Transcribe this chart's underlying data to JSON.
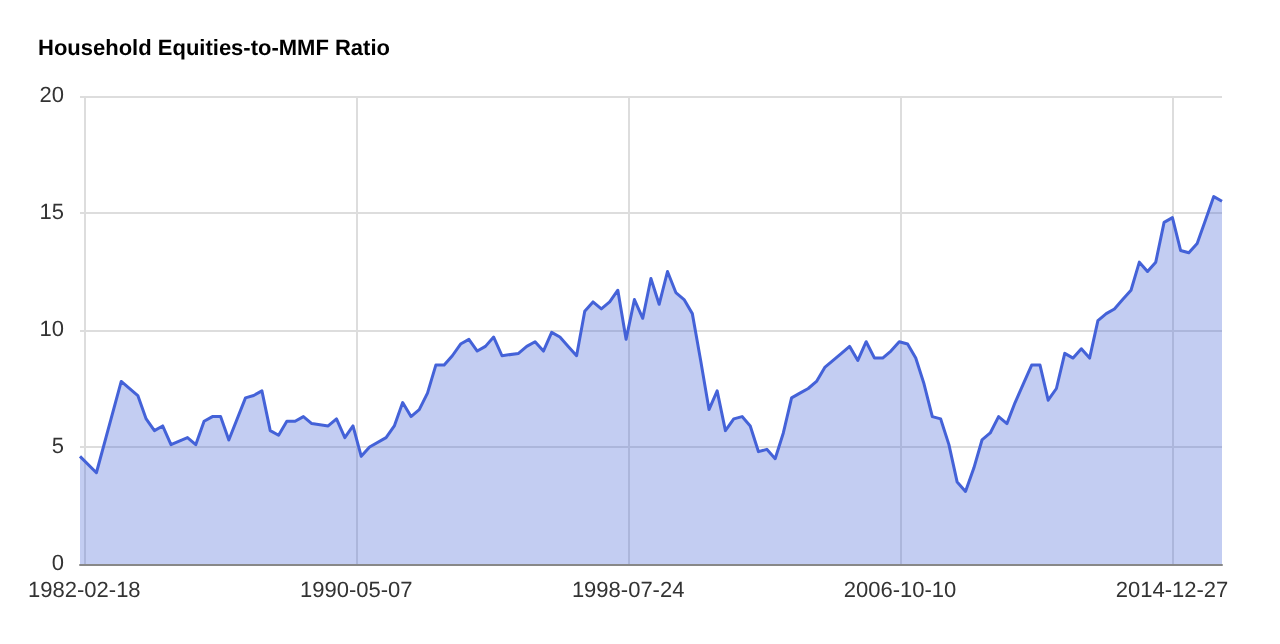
{
  "chart_data": {
    "type": "area",
    "title": "Household Equities-to-MMF Ratio",
    "x": [
      "1982-01",
      "1982-07",
      "1983-04",
      "1983-10",
      "1984-01",
      "1984-04",
      "1984-07",
      "1984-10",
      "1985-04",
      "1985-07",
      "1985-10",
      "1986-01",
      "1986-04",
      "1986-07",
      "1987-01",
      "1987-04",
      "1987-07",
      "1987-10",
      "1988-01",
      "1988-04",
      "1988-07",
      "1988-10",
      "1989-01",
      "1989-07",
      "1989-10",
      "1990-01",
      "1990-04",
      "1990-07",
      "1990-10",
      "1991-04",
      "1991-07",
      "1991-10",
      "1992-01",
      "1992-04",
      "1992-07",
      "1992-10",
      "1993-01",
      "1993-04",
      "1993-07",
      "1993-10",
      "1994-01",
      "1994-04",
      "1994-07",
      "1994-10",
      "1995-04",
      "1995-07",
      "1995-10",
      "1996-01",
      "1996-04",
      "1996-07",
      "1996-10",
      "1997-01",
      "1997-04",
      "1997-07",
      "1997-10",
      "1998-01",
      "1998-04",
      "1998-07",
      "1998-10",
      "1999-01",
      "1999-04",
      "1999-07",
      "1999-10",
      "2000-01",
      "2000-04",
      "2000-07",
      "2000-10",
      "2001-01",
      "2001-04",
      "2001-07",
      "2001-10",
      "2002-01",
      "2002-04",
      "2002-07",
      "2002-10",
      "2003-01",
      "2003-04",
      "2003-07",
      "2003-10",
      "2004-01",
      "2004-04",
      "2004-07",
      "2004-10",
      "2005-01",
      "2005-04",
      "2005-07",
      "2005-10",
      "2006-01",
      "2006-04",
      "2006-07",
      "2006-10",
      "2007-01",
      "2007-04",
      "2007-07",
      "2007-10",
      "2008-01",
      "2008-04",
      "2008-07",
      "2008-10",
      "2009-01",
      "2009-04",
      "2009-07",
      "2009-10",
      "2010-01",
      "2010-04",
      "2010-07",
      "2010-10",
      "2011-01",
      "2011-04",
      "2011-07",
      "2011-10",
      "2012-01",
      "2012-04",
      "2012-07",
      "2012-10",
      "2013-01",
      "2013-04",
      "2013-07",
      "2013-10",
      "2014-01",
      "2014-04",
      "2014-07",
      "2014-10",
      "2015-01",
      "2015-04",
      "2015-07",
      "2015-10",
      "2016-01",
      "2016-04",
      "2016-07"
    ],
    "series": [
      {
        "color": "#4462d8",
        "values": [
          4.6,
          3.9,
          7.8,
          7.2,
          6.2,
          5.7,
          5.9,
          5.1,
          5.4,
          5.1,
          6.1,
          6.3,
          6.3,
          5.3,
          7.1,
          7.2,
          7.4,
          5.7,
          5.5,
          6.1,
          6.1,
          6.3,
          6.0,
          5.9,
          6.2,
          5.4,
          5.9,
          4.6,
          5.0,
          5.4,
          5.9,
          6.9,
          6.3,
          6.6,
          7.3,
          8.5,
          8.5,
          8.9,
          9.4,
          9.6,
          9.1,
          9.3,
          9.7,
          8.9,
          9.0,
          9.3,
          9.5,
          9.1,
          9.9,
          9.7,
          9.3,
          8.9,
          10.8,
          11.2,
          10.9,
          11.2,
          11.7,
          9.6,
          11.3,
          10.5,
          12.2,
          11.1,
          12.5,
          11.6,
          11.3,
          10.7,
          8.7,
          6.6,
          7.4,
          5.7,
          6.2,
          6.3,
          5.9,
          4.8,
          4.9,
          4.5,
          5.6,
          7.1,
          7.3,
          7.5,
          7.8,
          8.4,
          8.7,
          9.0,
          9.3,
          8.7,
          9.5,
          8.8,
          8.8,
          9.1,
          9.5,
          9.4,
          8.8,
          7.7,
          6.3,
          6.2,
          5.1,
          3.5,
          3.1,
          4.1,
          5.3,
          5.6,
          6.3,
          6.0,
          6.9,
          7.7,
          8.5,
          8.5,
          7.0,
          7.5,
          9.0,
          8.8,
          9.2,
          8.8,
          10.4,
          10.7,
          10.9,
          11.3,
          11.7,
          12.9,
          12.5,
          12.9,
          14.6,
          14.8,
          13.4,
          13.3,
          13.7,
          14.7,
          15.7,
          15.5
        ]
      }
    ],
    "xlim": [
      "1982-01",
      "2016-07"
    ],
    "xticks": [
      "1982-02-18",
      "1990-05-07",
      "1998-07-24",
      "2006-10-10",
      "2014-12-27"
    ],
    "ylim": [
      0,
      20
    ],
    "yticks": [
      0,
      5,
      10,
      15,
      20
    ],
    "grid": true
  }
}
